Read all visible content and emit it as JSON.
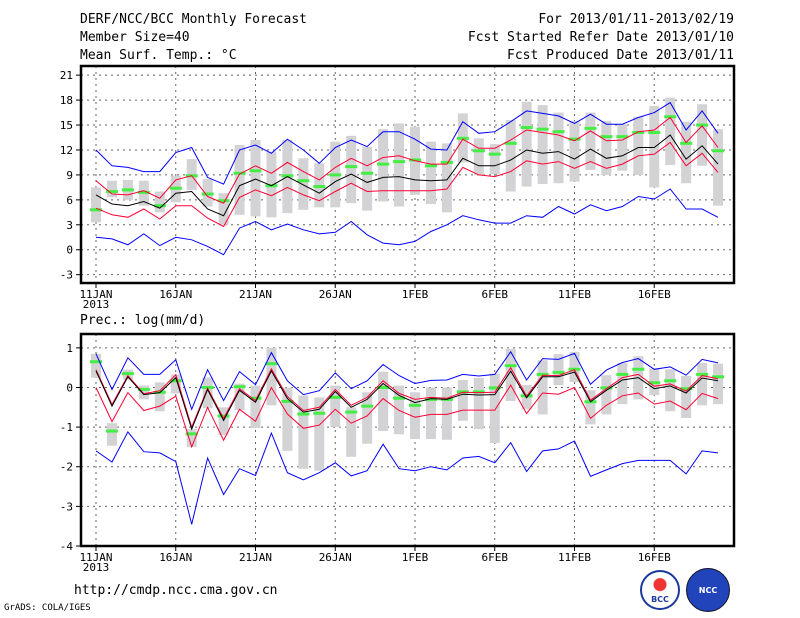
{
  "header": {
    "title": "DERF/NCC/BCC Monthly Forecast",
    "member_size": "Member Size=40",
    "variable": "Mean Surf. Temp.: °C",
    "period": "For 2013/01/11-2013/02/19",
    "fcst_started": "Fcst Started Refer Date 2013/01/10",
    "fcst_produced": "Fcst Produced Date 2013/01/11"
  },
  "footer": {
    "url": "http://cmdp.ncc.cma.gov.cn",
    "credit": "GrADS: COLA/IGES",
    "logo_left": "BCC",
    "logo_right": "NCC"
  },
  "colors": {
    "max_min": "#0000ff",
    "spread": "#ff0033",
    "mean": "#000000",
    "green": "#44ee44",
    "box": "#d3d3d6"
  },
  "chart_data": [
    {
      "type": "line",
      "title": "Mean Surf. Temp.: °C",
      "ylim": [
        -4,
        22.1
      ],
      "yticks": [
        -3,
        0,
        3,
        6,
        9,
        12,
        15,
        18,
        21
      ],
      "xtick_labels": [
        "11JAN",
        "16JAN",
        "21JAN",
        "26JAN",
        "1FEB",
        "6FEB",
        "11FEB",
        "16FEB"
      ],
      "xtick_year": "2013",
      "days": 40,
      "series": [
        {
          "name": "max",
          "color": "#0000ff",
          "values": [
            12,
            10.1,
            9.9,
            9.4,
            9.4,
            11.7,
            12.3,
            8.7,
            7.9,
            12,
            12.6,
            11.6,
            13.3,
            12,
            10.4,
            12.3,
            13.2,
            12.4,
            14.2,
            14.2,
            13.3,
            12.1,
            12,
            15.4,
            14,
            14.2,
            15.4,
            16.7,
            16.4,
            16.1,
            15.2,
            16.3,
            15.1,
            15.1,
            15.9,
            16.5,
            17.7,
            14.4,
            16.7,
            14
          ]
        },
        {
          "name": "min",
          "color": "#0000ff",
          "values": [
            1.5,
            1.3,
            0.6,
            1.9,
            0.5,
            1.5,
            1.2,
            0.4,
            -0.6,
            2.6,
            3.4,
            2.4,
            3.1,
            2.4,
            1.9,
            2.1,
            3.4,
            1.8,
            0.8,
            0.6,
            1,
            2.2,
            3,
            4.1,
            3.6,
            3.2,
            3.2,
            4.1,
            3.9,
            5.2,
            4.3,
            5.4,
            4.7,
            5.2,
            6.4,
            6.1,
            7.3,
            4.9,
            4.9,
            3.9
          ]
        },
        {
          "name": "mean+sd",
          "color": "#ff0033",
          "values": [
            8.3,
            6.7,
            6.6,
            7.1,
            6.2,
            8.4,
            8.9,
            6.4,
            5.6,
            9.1,
            10.1,
            9.2,
            10.5,
            9.4,
            8.4,
            9.9,
            11,
            10.1,
            11.1,
            11.3,
            10.7,
            10.3,
            10.3,
            13.3,
            12.2,
            12.2,
            13.2,
            14.4,
            14.1,
            13.8,
            13.1,
            14.3,
            13.1,
            13.2,
            14.2,
            14.4,
            15.9,
            12.9,
            14.9,
            12.3
          ]
        },
        {
          "name": "mean-sd",
          "color": "#ff0033",
          "values": [
            5,
            4.2,
            3.9,
            4.9,
            3.7,
            5.3,
            5.3,
            3.8,
            2.8,
            6.3,
            7.2,
            6.5,
            7.5,
            6.6,
            5.9,
            7,
            8,
            7,
            7.1,
            7.1,
            7.1,
            7.1,
            7.3,
            9.9,
            9,
            8.8,
            9.4,
            10.7,
            10.3,
            10.6,
            9.8,
            10.6,
            9.8,
            10.3,
            11.3,
            11.5,
            12.9,
            10.1,
            11.6,
            9.3
          ]
        },
        {
          "name": "mean",
          "color": "#000000",
          "values": [
            6.6,
            5.5,
            5.3,
            5.8,
            5,
            6.8,
            7,
            4.9,
            4.1,
            7.7,
            8.5,
            7.7,
            8.8,
            7.8,
            6.8,
            8.2,
            9.1,
            8.1,
            8.7,
            8.8,
            8.4,
            8.3,
            8.4,
            11,
            10.1,
            10.1,
            10.8,
            12,
            11.6,
            11.8,
            10.9,
            12.1,
            11,
            11.3,
            12.3,
            12.3,
            13.8,
            10.9,
            12.5,
            10.3
          ]
        }
      ],
      "green_marks": [
        4.8,
        7,
        7.2,
        6.9,
        5.3,
        7.4,
        8.9,
        6.7,
        5.9,
        9.2,
        9.5,
        7.7,
        8.9,
        8.3,
        7.6,
        9,
        10,
        9.2,
        10.3,
        10.6,
        10.8,
        10.1,
        10.5,
        13.4,
        11.9,
        11.5,
        12.8,
        14.7,
        14.5,
        14.2,
        13.3,
        14.6,
        13.6,
        13.6,
        14.1,
        14.1,
        16,
        12.8,
        15,
        11.9
      ],
      "box_low": [
        3.3,
        6.3,
        6,
        5.3,
        4.5,
        5.7,
        7.2,
        5.2,
        3,
        4.2,
        4,
        3.9,
        4.4,
        4.8,
        5.1,
        5.1,
        5.6,
        4.7,
        5.8,
        5.2,
        6.6,
        5.5,
        4.5,
        10.5,
        9,
        9.1,
        7,
        7.6,
        7.9,
        8,
        8.2,
        9.6,
        9,
        9.5,
        9,
        7.5,
        10.2,
        8,
        10.1,
        5.3
      ],
      "box_high": [
        7.5,
        8.3,
        8.4,
        8.3,
        7,
        8.9,
        10.9,
        8.5,
        6.8,
        12.6,
        13.2,
        11.8,
        13.2,
        11,
        10.4,
        13,
        13.7,
        12.4,
        14.5,
        15.2,
        14.8,
        13,
        12.8,
        16.4,
        13.4,
        12.7,
        15.6,
        17.8,
        17.4,
        16.5,
        15.5,
        16.5,
        15.5,
        15.1,
        16,
        17.3,
        18.3,
        15.4,
        17.5,
        14.5
      ]
    },
    {
      "type": "line",
      "title": "Prec.: log(mm/d)",
      "ylim": [
        -4,
        1.35
      ],
      "yticks": [
        -4,
        -3,
        -2,
        -1,
        0,
        1
      ],
      "xtick_labels": [
        "11JAN",
        "16JAN",
        "21JAN",
        "26JAN",
        "1FEB",
        "6FEB",
        "11FEB",
        "16FEB"
      ],
      "xtick_year": "2013",
      "days": 40,
      "series": [
        {
          "name": "max",
          "color": "#0000ff",
          "values": [
            0.85,
            -0.05,
            0.75,
            0.33,
            0.33,
            0.7,
            -0.55,
            0.45,
            -0.33,
            0.4,
            0.07,
            0.88,
            0.17,
            -0.18,
            -0.08,
            0.37,
            -0.03,
            0.17,
            0.58,
            0.3,
            0.1,
            0.18,
            0.19,
            0.33,
            0.29,
            0.33,
            0.9,
            0.19,
            0.73,
            0.71,
            0.86,
            0.08,
            0.44,
            0.63,
            0.73,
            0.46,
            0.52,
            0.31,
            0.71,
            0.62
          ]
        },
        {
          "name": "min",
          "color": "#0000ff",
          "values": [
            -1.6,
            -1.88,
            -1.12,
            -1.62,
            -1.65,
            -1.87,
            -3.45,
            -1.78,
            -2.7,
            -2.05,
            -2.22,
            -1.15,
            -2.15,
            -2.33,
            -2.15,
            -1.9,
            -2.23,
            -2.1,
            -1.43,
            -2.05,
            -2.1,
            -2,
            -2.08,
            -1.78,
            -1.74,
            -1.9,
            -1.39,
            -2.12,
            -1.6,
            -1.55,
            -1.35,
            -2.24,
            -2.08,
            -1.92,
            -1.84,
            -1.84,
            -1.84,
            -2.18,
            -1.6,
            -1.65
          ]
        },
        {
          "name": "mean+sd",
          "color": "#ff0033",
          "values": [
            0.45,
            -0.43,
            0.3,
            -0.16,
            -0.08,
            0.32,
            -1,
            -0.02,
            -0.78,
            -0.03,
            -0.33,
            0.47,
            -0.23,
            -0.58,
            -0.5,
            -0.05,
            -0.45,
            -0.25,
            0.17,
            -0.15,
            -0.3,
            -0.25,
            -0.27,
            -0.12,
            -0.13,
            -0.12,
            0.5,
            -0.22,
            0.31,
            0.3,
            0.45,
            -0.32,
            -0.03,
            0.25,
            0.33,
            0.03,
            0.09,
            -0.09,
            0.3,
            0.22
          ]
        },
        {
          "name": "mean-sd",
          "color": "#ff0033",
          "values": [
            0,
            -0.86,
            -0.13,
            -0.58,
            -0.47,
            -0.22,
            -1.5,
            -0.5,
            -1.33,
            -0.55,
            -0.85,
            0,
            -0.67,
            -1.03,
            -0.95,
            -0.55,
            -0.9,
            -0.72,
            -0.28,
            -0.58,
            -0.75,
            -0.68,
            -0.68,
            -0.57,
            -0.57,
            -0.57,
            0.06,
            -0.66,
            -0.14,
            -0.17,
            0,
            -0.78,
            -0.45,
            -0.21,
            -0.14,
            -0.42,
            -0.34,
            -0.56,
            -0.15,
            -0.28
          ]
        },
        {
          "name": "mean",
          "color": "#000000",
          "values": [
            0.42,
            -0.47,
            0.27,
            -0.18,
            -0.13,
            0.25,
            -1.05,
            -0.05,
            -0.83,
            -0.07,
            -0.37,
            0.42,
            -0.28,
            -0.62,
            -0.55,
            -0.1,
            -0.5,
            -0.3,
            0.1,
            -0.2,
            -0.38,
            -0.28,
            -0.3,
            -0.17,
            -0.19,
            -0.18,
            0.41,
            -0.26,
            0.27,
            0.27,
            0.39,
            -0.36,
            -0.07,
            0.19,
            0.25,
            -0.03,
            0.04,
            -0.14,
            0.24,
            0.17
          ]
        }
      ],
      "green_marks": [
        0.65,
        -1.1,
        0.35,
        -0.05,
        -0.12,
        0.17,
        -1.17,
        0,
        -0.72,
        0.02,
        -0.27,
        0.6,
        -0.35,
        -0.67,
        -0.65,
        -0.25,
        -0.62,
        -0.47,
        0,
        -0.27,
        -0.45,
        -0.3,
        -0.3,
        -0.11,
        -0.11,
        -0.01,
        0.55,
        -0.21,
        0.33,
        0.38,
        0.46,
        -0.36,
        -0.01,
        0.33,
        0.46,
        0.12,
        0.17,
        -0.03,
        0.33,
        0.27
      ],
      "box_low": [
        0.25,
        -1.47,
        0.2,
        -0.3,
        -0.6,
        -0.15,
        -1.5,
        -0.52,
        -1.2,
        -0.57,
        -1.02,
        -0.45,
        -1.6,
        -2.05,
        -2.1,
        -1,
        -1.75,
        -1.42,
        -1.1,
        -1.18,
        -1.3,
        -1.3,
        -1.32,
        -0.84,
        -1.05,
        -1.4,
        -0.34,
        -0.55,
        -0.68,
        0.06,
        0.14,
        -0.93,
        -0.68,
        -0.42,
        -0.3,
        -0.19,
        -0.6,
        -0.77,
        -0.45,
        -0.42
      ],
      "box_high": [
        0.85,
        -0.9,
        0.45,
        0.05,
        0.13,
        0.33,
        -1.05,
        0.25,
        -0.5,
        0.1,
        0.05,
        1,
        0,
        -0.2,
        -0.25,
        0.05,
        -0.5,
        -0.12,
        0.4,
        0.05,
        -0.12,
        0,
        0,
        0.19,
        0.24,
        0.35,
        0.97,
        0.06,
        0.69,
        0.84,
        0.9,
        -0.07,
        0.31,
        0.62,
        0.79,
        0.48,
        0.46,
        0.29,
        0.62,
        0.6
      ]
    }
  ]
}
